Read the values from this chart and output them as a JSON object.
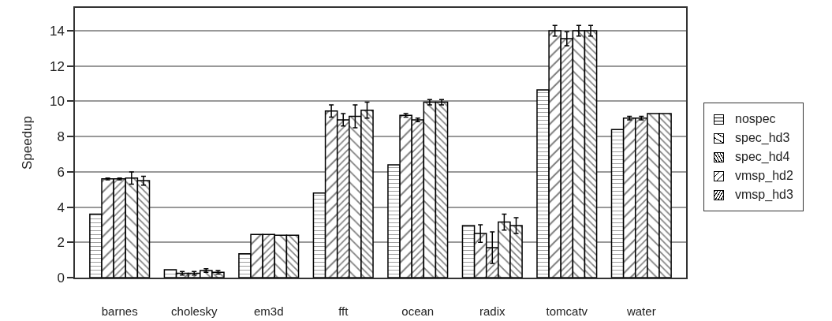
{
  "chart_data": {
    "type": "bar",
    "ylabel": "Speedup",
    "categories": [
      "barnes",
      "cholesky",
      "em3d",
      "fft",
      "ocean",
      "radix",
      "tomcatv",
      "water"
    ],
    "series": [
      {
        "name": "nospec",
        "color": "#000000",
        "values": [
          3.6,
          0.45,
          1.35,
          4.8,
          6.4,
          2.95,
          10.65,
          8.4
        ]
      },
      {
        "name": "spec_hd3",
        "color": "#000000",
        "values": [
          5.6,
          0.25,
          2.45,
          9.45,
          9.2,
          2.5,
          14.0,
          9.05
        ],
        "errors": [
          0.05,
          0.1,
          null,
          0.35,
          0.1,
          0.5,
          0.3,
          0.1
        ]
      },
      {
        "name": "spec_hd4",
        "color": "#000000",
        "values": [
          5.6,
          0.25,
          2.45,
          8.95,
          8.95,
          1.7,
          13.55,
          9.05
        ],
        "errors": [
          0.05,
          0.1,
          null,
          0.35,
          0.1,
          0.9,
          0.4,
          0.1
        ]
      },
      {
        "name": "vmsp_hd2",
        "color": "#000000",
        "values": [
          5.65,
          0.4,
          2.4,
          9.15,
          9.95,
          3.15,
          14.0,
          9.3
        ],
        "errors": [
          0.35,
          0.1,
          null,
          0.65,
          0.15,
          0.45,
          0.3,
          null
        ]
      },
      {
        "name": "vmsp_hd3",
        "color": "#000000",
        "values": [
          5.5,
          0.3,
          2.4,
          9.5,
          9.95,
          2.95,
          14.0,
          9.3
        ],
        "errors": [
          0.25,
          0.1,
          null,
          0.45,
          0.15,
          0.45,
          0.3,
          null
        ]
      }
    ],
    "ylim": [
      0,
      15.3
    ],
    "yticks": [
      0,
      2,
      4,
      6,
      8,
      10,
      12,
      14
    ],
    "grid": "y",
    "legend": "right"
  }
}
